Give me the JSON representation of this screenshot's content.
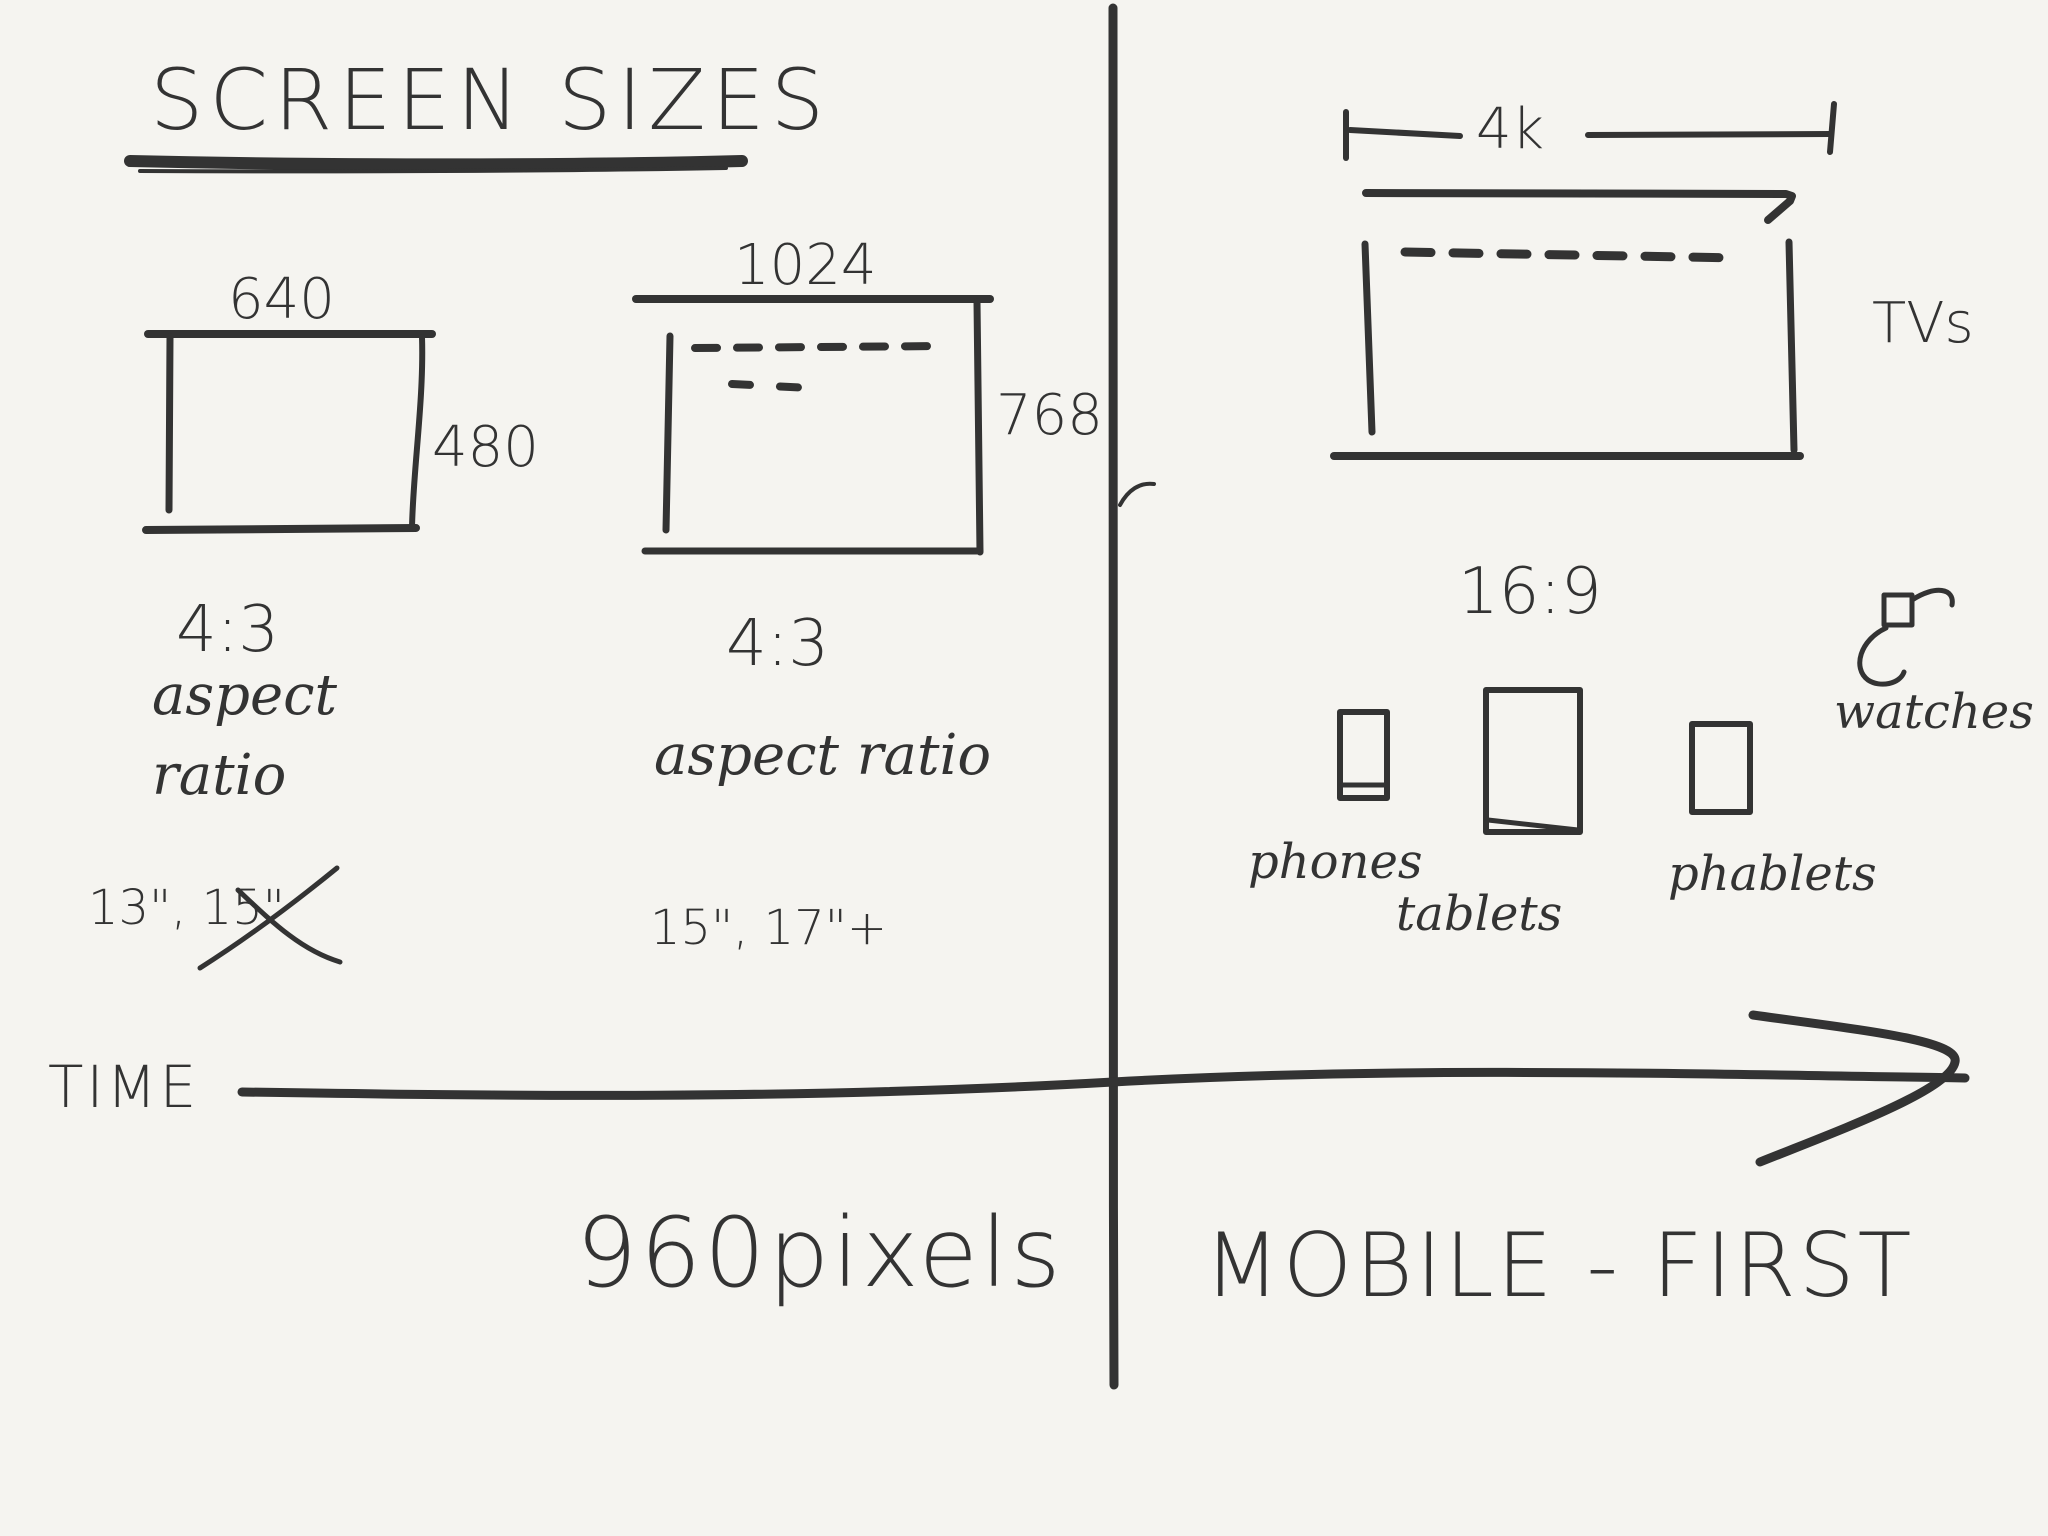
{
  "title": "SCREEN SIZES",
  "timeline": {
    "axis_label": "TIME",
    "left_heading": "960pixels",
    "right_heading": "MOBILE - FIRST"
  },
  "screens": [
    {
      "width": "640",
      "height": "480",
      "ratio": "4:3",
      "ratio_caption_line1": "aspect",
      "ratio_caption_line2": "ratio",
      "monitor_sizes": "13\", 15\""
    },
    {
      "width": "1024",
      "height": "768",
      "ratio": "4:3",
      "ratio_caption": "aspect ratio",
      "monitor_sizes": "15\", 17\"+"
    },
    {
      "width": "4k",
      "ratio": "16:9",
      "device_label": "TVs"
    }
  ],
  "devices": [
    "phones",
    "tablets",
    "phablets",
    "watches"
  ],
  "colors": {
    "ink": "#333333",
    "paper": "#f5f4f0",
    "accent": "#6fbfae"
  }
}
